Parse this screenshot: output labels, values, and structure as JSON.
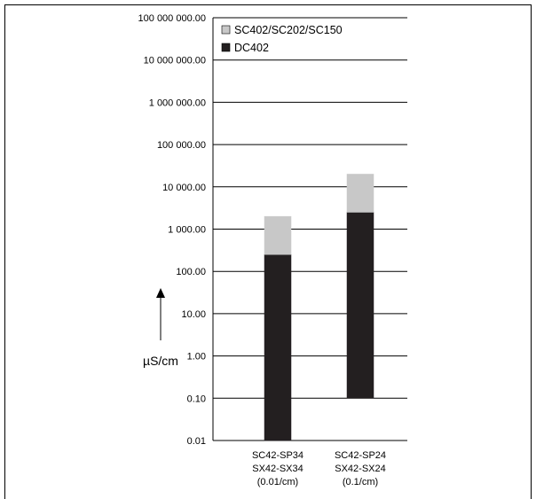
{
  "chart_data": {
    "type": "bar",
    "stacked": true,
    "y_scale": "log",
    "ylim": [
      0.01,
      100000000
    ],
    "y_ticks": [
      0.01,
      0.1,
      1,
      10,
      100,
      1000,
      10000,
      100000,
      1000000,
      10000000,
      100000000
    ],
    "y_tick_labels": [
      "0.01",
      "0.10",
      "1.00",
      "10.00",
      "100.00",
      "1 000.00",
      "10 000.00",
      "100 000.00",
      "1 000 000.00",
      "10 000 000.00",
      "100 000 000.00"
    ],
    "ylabel": "µS/cm",
    "grid": true,
    "legend_position": "top",
    "categories": [
      [
        "SC42-SP34",
        "SX42-SX34",
        "(0.01/cm)"
      ],
      [
        "SC42-SP24",
        "SX42-SX24",
        "(0.1/cm)"
      ]
    ],
    "series": [
      {
        "name": "DC402",
        "color": "#231f20",
        "ranges": [
          [
            0.01,
            250
          ],
          [
            0.1,
            2500
          ]
        ]
      },
      {
        "name": "SC402/SC202/SC150",
        "color": "#c8c8c8",
        "ranges": [
          [
            250,
            2000
          ],
          [
            2500,
            20000
          ]
        ]
      }
    ]
  }
}
